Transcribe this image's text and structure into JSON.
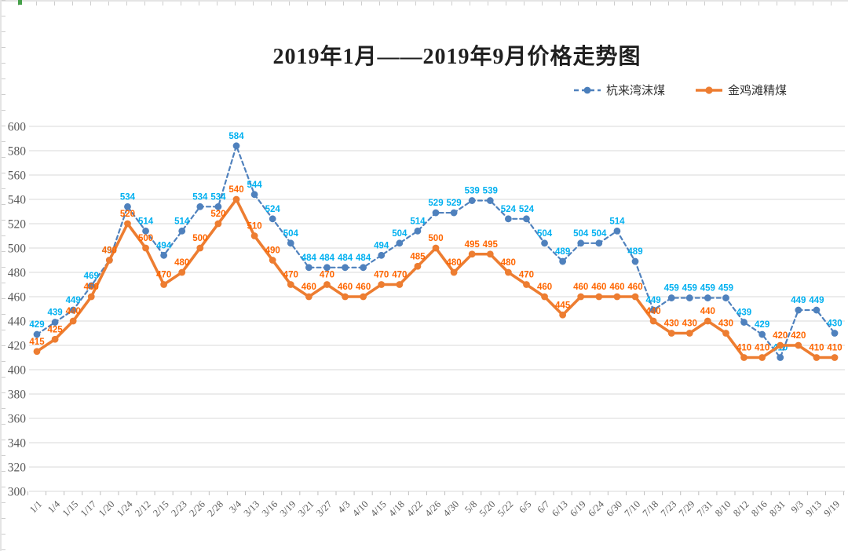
{
  "chart_data": {
    "type": "line",
    "title": "2019年1月——2019年9月价格走势图",
    "categories": [
      "1/1",
      "1/4",
      "1/15",
      "1/17",
      "1/20",
      "1/24",
      "2/12",
      "2/15",
      "2/23",
      "2/26",
      "2/28",
      "3/4",
      "3/13",
      "3/16",
      "3/19",
      "3/21",
      "3/27",
      "4/3",
      "4/10",
      "4/15",
      "4/18",
      "4/22",
      "4/26",
      "4/30",
      "5/8",
      "5/20",
      "5/22",
      "6/5",
      "6/7",
      "6/13",
      "6/19",
      "6/24",
      "6/30",
      "7/10",
      "7/18",
      "7/23",
      "7/29",
      "7/31",
      "8/10",
      "8/12",
      "8/16",
      "8/31",
      "9/3",
      "9/13",
      "9/19"
    ],
    "series": [
      {
        "name": "杭来湾沫煤",
        "style": "dashed",
        "color": "#4f81bd",
        "label_color": "#00b0f0",
        "values": [
          429,
          439,
          449,
          469,
          490,
          534,
          514,
          494,
          514,
          534,
          534,
          584,
          544,
          524,
          504,
          484,
          484,
          484,
          484,
          494,
          504,
          514,
          529,
          529,
          539,
          539,
          524,
          524,
          504,
          489,
          504,
          504,
          514,
          489,
          449,
          459,
          459,
          459,
          459,
          439,
          429,
          410,
          449,
          449,
          430
        ]
      },
      {
        "name": "金鸡滩精煤",
        "style": "solid",
        "color": "#ed7d31",
        "label_color": "#ff6600",
        "values": [
          415,
          425,
          440,
          460,
          490,
          520,
          500,
          470,
          480,
          500,
          520,
          540,
          510,
          490,
          470,
          460,
          470,
          460,
          460,
          470,
          470,
          485,
          500,
          480,
          495,
          495,
          480,
          470,
          460,
          445,
          460,
          460,
          460,
          460,
          440,
          430,
          430,
          440,
          430,
          410,
          410,
          420,
          420,
          410,
          410
        ]
      }
    ],
    "ylim": [
      300,
      600
    ],
    "ytick_step": 20,
    "yticks": [
      300,
      320,
      340,
      360,
      380,
      400,
      420,
      440,
      460,
      480,
      500,
      520,
      540,
      560,
      580,
      600
    ],
    "grid": "horizontal",
    "legend_position": "top-right",
    "colors": {
      "grid": "#d9d9d9",
      "axis_text": "#595959",
      "tick": "#bfbfbf"
    },
    "data_labels": "shown above every point"
  }
}
